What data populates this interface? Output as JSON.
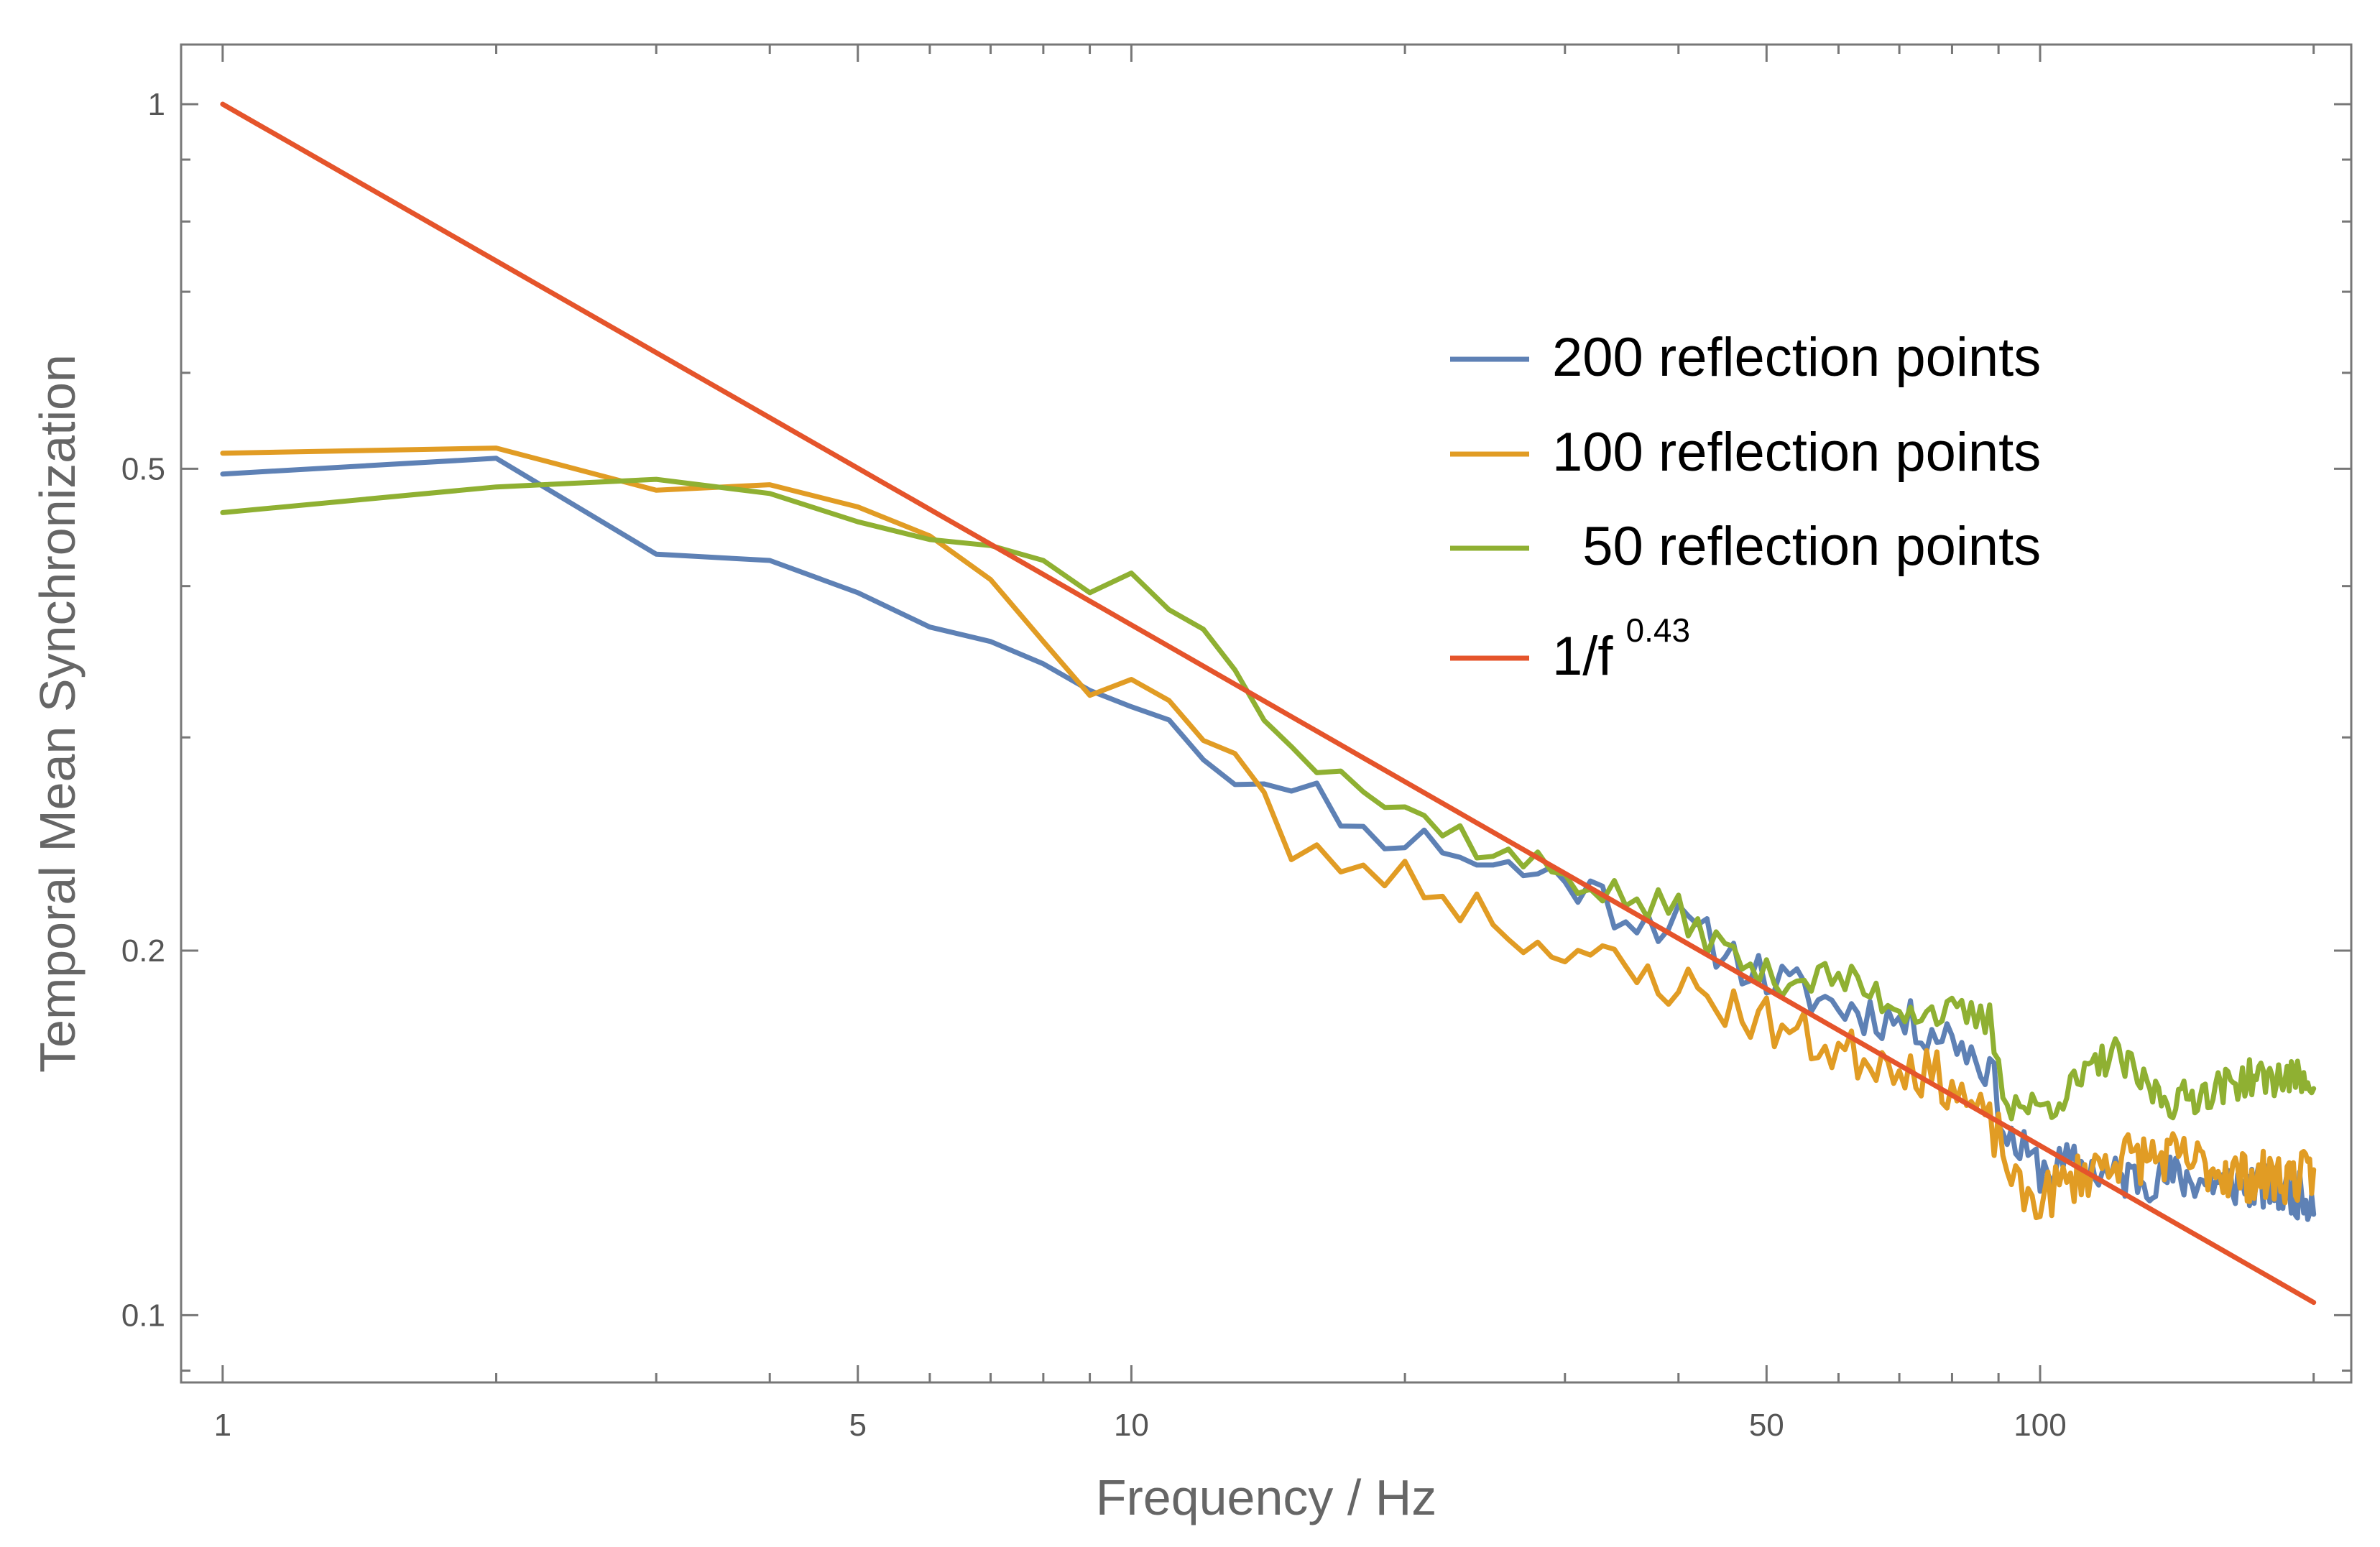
{
  "chart_data": {
    "type": "line",
    "title": "",
    "xlabel": "Frequency / Hz",
    "ylabel": "Temporal Mean Synchronization",
    "xscale": "log",
    "yscale": "log",
    "xlim": [
      0.9,
      220
    ],
    "ylim": [
      0.088,
      1.12
    ],
    "xticks": [
      {
        "value": 1,
        "label": "1"
      },
      {
        "value": 5,
        "label": "5"
      },
      {
        "value": 10,
        "label": "10"
      },
      {
        "value": 50,
        "label": "50"
      },
      {
        "value": 100,
        "label": "100"
      }
    ],
    "yticks": [
      {
        "value": 0.1,
        "label": "0.1"
      },
      {
        "value": 0.2,
        "label": "0.2"
      },
      {
        "value": 0.5,
        "label": "0.5"
      },
      {
        "value": 1,
        "label": "1"
      }
    ],
    "legend_position": "upper-right",
    "series": [
      {
        "name": "200 reflection points",
        "color": "#5e81b5",
        "kind": "noisy",
        "seed": 11,
        "noise": 0.045,
        "anchors": [
          [
            1,
            0.495
          ],
          [
            2,
            0.51
          ],
          [
            3,
            0.425
          ],
          [
            4,
            0.42
          ],
          [
            5,
            0.395
          ],
          [
            6,
            0.37
          ],
          [
            7,
            0.36
          ],
          [
            8,
            0.345
          ],
          [
            9,
            0.328
          ],
          [
            10,
            0.318
          ],
          [
            11,
            0.313
          ],
          [
            12,
            0.29
          ],
          [
            13,
            0.276
          ],
          [
            14,
            0.28
          ],
          [
            15,
            0.268
          ],
          [
            16,
            0.27
          ],
          [
            18,
            0.25
          ],
          [
            20,
            0.248
          ],
          [
            22,
            0.245
          ],
          [
            25,
            0.235
          ],
          [
            30,
            0.23
          ],
          [
            35,
            0.215
          ],
          [
            40,
            0.21
          ],
          [
            45,
            0.2
          ],
          [
            50,
            0.19
          ],
          [
            60,
            0.18
          ],
          [
            70,
            0.175
          ],
          [
            80,
            0.17
          ],
          [
            88,
            0.16
          ],
          [
            92,
            0.14
          ],
          [
            100,
            0.132
          ],
          [
            110,
            0.133
          ],
          [
            120,
            0.13
          ],
          [
            140,
            0.13
          ],
          [
            170,
            0.128
          ],
          [
            200,
            0.125
          ]
        ]
      },
      {
        "name": "100 reflection points",
        "color": "#e19c24",
        "kind": "noisy",
        "seed": 23,
        "noise": 0.05,
        "anchors": [
          [
            1,
            0.515
          ],
          [
            2,
            0.52
          ],
          [
            3,
            0.48
          ],
          [
            4,
            0.485
          ],
          [
            5,
            0.465
          ],
          [
            6,
            0.44
          ],
          [
            7,
            0.405
          ],
          [
            8,
            0.36
          ],
          [
            9,
            0.325
          ],
          [
            10,
            0.335
          ],
          [
            11,
            0.325
          ],
          [
            12,
            0.3
          ],
          [
            13,
            0.29
          ],
          [
            14,
            0.27
          ],
          [
            15,
            0.235
          ],
          [
            16,
            0.24
          ],
          [
            18,
            0.232
          ],
          [
            20,
            0.23
          ],
          [
            22,
            0.222
          ],
          [
            25,
            0.215
          ],
          [
            28,
            0.2
          ],
          [
            30,
            0.205
          ],
          [
            35,
            0.19
          ],
          [
            40,
            0.188
          ],
          [
            45,
            0.18
          ],
          [
            50,
            0.175
          ],
          [
            60,
            0.165
          ],
          [
            70,
            0.162
          ],
          [
            80,
            0.155
          ],
          [
            90,
            0.14
          ],
          [
            95,
            0.125
          ],
          [
            100,
            0.125
          ],
          [
            110,
            0.13
          ],
          [
            120,
            0.135
          ],
          [
            140,
            0.135
          ],
          [
            170,
            0.13
          ],
          [
            200,
            0.13
          ]
        ]
      },
      {
        "name": "  50 reflection points",
        "color": "#8fb032",
        "kind": "noisy",
        "seed": 37,
        "noise": 0.035,
        "anchors": [
          [
            1,
            0.46
          ],
          [
            2,
            0.483
          ],
          [
            3,
            0.49
          ],
          [
            4,
            0.477
          ],
          [
            5,
            0.452
          ],
          [
            6,
            0.437
          ],
          [
            7,
            0.432
          ],
          [
            8,
            0.42
          ],
          [
            9,
            0.395
          ],
          [
            10,
            0.41
          ],
          [
            11,
            0.385
          ],
          [
            12,
            0.367
          ],
          [
            13,
            0.345
          ],
          [
            14,
            0.315
          ],
          [
            15,
            0.3
          ],
          [
            16,
            0.283
          ],
          [
            17,
            0.284
          ],
          [
            18,
            0.27
          ],
          [
            20,
            0.26
          ],
          [
            22,
            0.255
          ],
          [
            25,
            0.24
          ],
          [
            30,
            0.232
          ],
          [
            35,
            0.22
          ],
          [
            40,
            0.215
          ],
          [
            45,
            0.2
          ],
          [
            50,
            0.19
          ],
          [
            60,
            0.19
          ],
          [
            70,
            0.18
          ],
          [
            80,
            0.177
          ],
          [
            88,
            0.175
          ],
          [
            92,
            0.15
          ],
          [
            100,
            0.148
          ],
          [
            110,
            0.155
          ],
          [
            120,
            0.165
          ],
          [
            130,
            0.155
          ],
          [
            140,
            0.15
          ],
          [
            170,
            0.157
          ],
          [
            200,
            0.157
          ]
        ]
      },
      {
        "name": "1/f",
        "legend_exponent": "0.43",
        "color": "#e5542b",
        "kind": "power",
        "exponent": 0.43,
        "x": [
          1,
          200
        ]
      }
    ]
  }
}
